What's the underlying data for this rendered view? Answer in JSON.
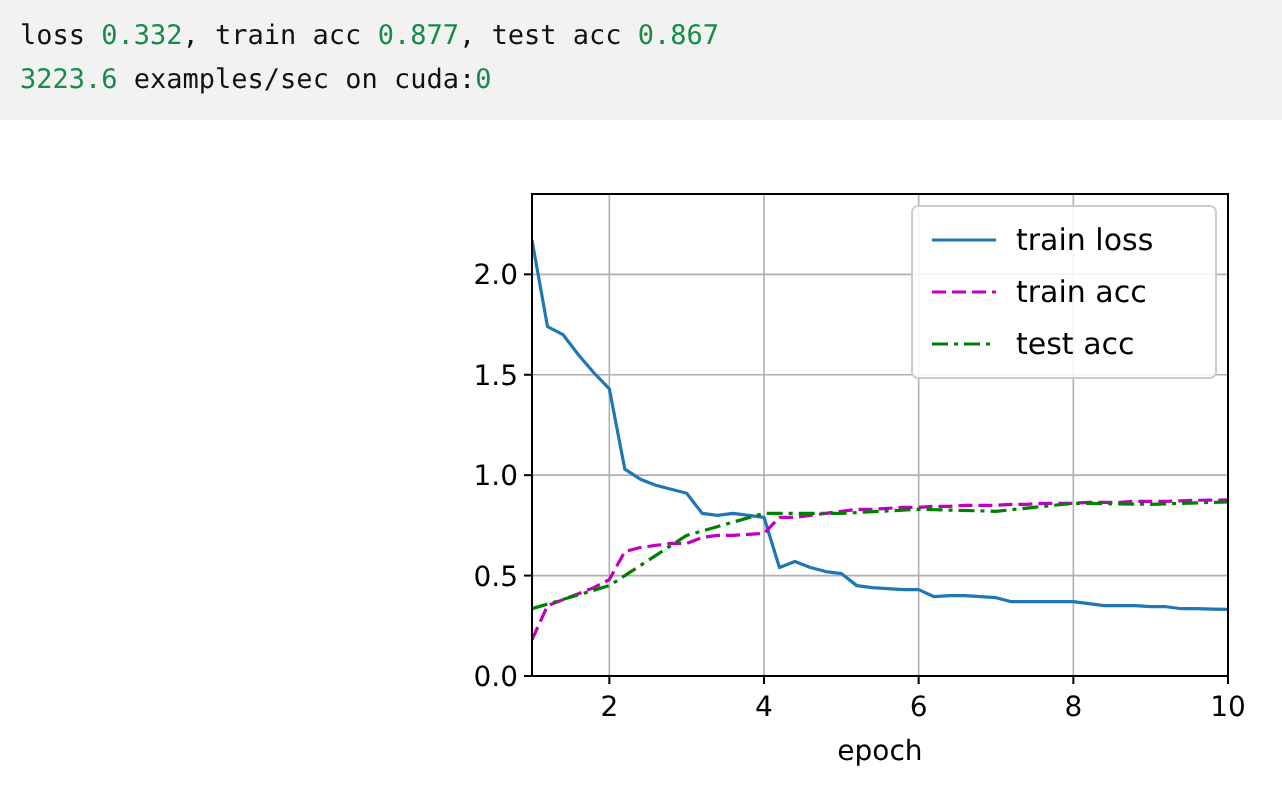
{
  "chart_data": {
    "type": "line",
    "xlabel": "epoch",
    "annotations": [
      "loss 0.332, train acc 0.877, test acc 0.867",
      "3223.6 examples/sec on cuda:0"
    ],
    "xlim": [
      1,
      10
    ],
    "ylim": [
      0,
      2.4
    ],
    "xticks": [
      2,
      4,
      6,
      8,
      10
    ],
    "yticks": [
      {
        "value": 0,
        "label": "0.0"
      },
      {
        "value": 0.5,
        "label": "0.5"
      },
      {
        "value": 1,
        "label": "1.0"
      },
      {
        "value": 1.5,
        "label": "1.5"
      },
      {
        "value": 2,
        "label": "2.0"
      }
    ],
    "grid": true,
    "legend": "top right",
    "marker": "none",
    "series": [
      {
        "name": "train loss",
        "color": "#1f77b4",
        "line_style": "solid",
        "x": [
          1,
          1.2,
          1.4,
          1.6,
          1.8,
          2,
          2.2,
          2.4,
          2.6,
          2.8,
          3,
          3.2,
          3.4,
          3.6,
          3.8,
          4,
          4.2,
          4.4,
          4.6,
          4.8,
          5,
          5.2,
          5.4,
          5.6,
          5.8,
          6,
          6.2,
          6.4,
          6.6,
          6.8,
          7,
          7.2,
          7.4,
          7.6,
          7.8,
          8,
          8.2,
          8.4,
          8.6,
          8.8,
          9,
          9.2,
          9.4,
          9.6,
          9.8,
          10
        ],
        "values": [
          2.17,
          1.74,
          1.7,
          1.6,
          1.51,
          1.43,
          1.03,
          0.98,
          0.95,
          0.93,
          0.91,
          0.81,
          0.8,
          0.81,
          0.8,
          0.79,
          0.54,
          0.57,
          0.54,
          0.52,
          0.51,
          0.45,
          0.44,
          0.435,
          0.43,
          0.43,
          0.395,
          0.4,
          0.4,
          0.395,
          0.39,
          0.37,
          0.37,
          0.37,
          0.37,
          0.37,
          0.36,
          0.35,
          0.35,
          0.35,
          0.345,
          0.345,
          0.335,
          0.335,
          0.333,
          0.332
        ]
      },
      {
        "name": "train acc",
        "color": "#bf00bf",
        "line_style": "dashed",
        "x": [
          1,
          1.2,
          1.4,
          1.6,
          1.8,
          2,
          2.2,
          2.4,
          2.6,
          2.8,
          3,
          3.2,
          3.4,
          3.6,
          3.8,
          4,
          4.2,
          4.4,
          4.6,
          4.8,
          5,
          5.2,
          5.4,
          5.6,
          5.8,
          6,
          6.2,
          6.4,
          6.6,
          6.8,
          7,
          7.2,
          7.4,
          7.6,
          7.8,
          8,
          8.2,
          8.4,
          8.6,
          8.8,
          9,
          9.2,
          9.4,
          9.6,
          9.8,
          10
        ],
        "values": [
          0.18,
          0.35,
          0.38,
          0.41,
          0.44,
          0.48,
          0.62,
          0.64,
          0.65,
          0.66,
          0.66,
          0.69,
          0.7,
          0.7,
          0.705,
          0.71,
          0.79,
          0.79,
          0.8,
          0.81,
          0.82,
          0.83,
          0.83,
          0.835,
          0.84,
          0.84,
          0.845,
          0.845,
          0.85,
          0.85,
          0.85,
          0.855,
          0.855,
          0.86,
          0.86,
          0.86,
          0.865,
          0.865,
          0.865,
          0.87,
          0.87,
          0.87,
          0.872,
          0.875,
          0.876,
          0.877
        ]
      },
      {
        "name": "test acc",
        "color": "#008000",
        "line_style": "dashdot",
        "x": [
          1,
          2,
          3,
          4,
          5,
          6,
          7,
          8,
          9,
          10
        ],
        "values": [
          0.335,
          0.45,
          0.7,
          0.81,
          0.81,
          0.83,
          0.82,
          0.86,
          0.855,
          0.867
        ]
      }
    ]
  }
}
